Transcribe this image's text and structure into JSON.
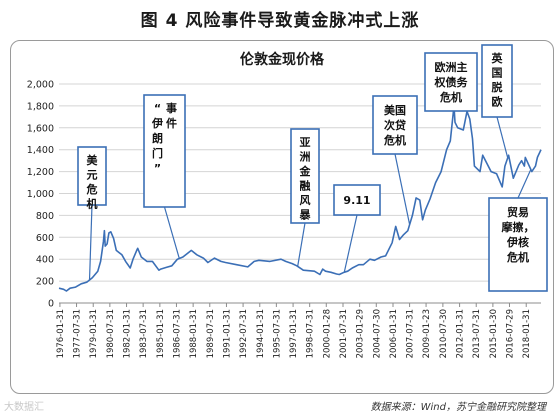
{
  "figure_title": "图 4   风险事件导致黄金脉冲式上涨",
  "source_note": "数据来源：Wind，苏宁金融研究院整理",
  "watermark": "大数据汇",
  "chart_data": {
    "type": "line",
    "title": "伦敦金现价格",
    "ylim": [
      0,
      2000
    ],
    "yticks": [
      0,
      200,
      400,
      600,
      800,
      1000,
      1200,
      1400,
      1600,
      1800,
      2000
    ],
    "ytick_labels": [
      "0",
      "200",
      "400",
      "600",
      "800",
      "1,000",
      "1,200",
      "1,400",
      "1,600",
      "1,800",
      "2,000"
    ],
    "xlim": [
      "1976-01-01",
      "2019-06-01"
    ],
    "xtick_labels": [
      "1976-01-31",
      "1977-07-31",
      "1979-01-31",
      "1980-07-31",
      "1982-01-31",
      "1983-07-31",
      "1985-01-31",
      "1986-07-31",
      "1988-01-31",
      "1989-07-31",
      "1991-01-31",
      "1992-07-31",
      "1994-01-31",
      "1995-07-31",
      "1997-01-31",
      "1998-07-31",
      "2000-01-28",
      "2001-07-31",
      "2003-01-29",
      "2004-07-30",
      "2006-01-31",
      "2007-07-31",
      "2009-01-23",
      "2010-07-30",
      "2012-01-31",
      "2013-07-31",
      "2015-01-30",
      "2016-07-29",
      "2018-01-31"
    ],
    "grid": "horizontal",
    "line_color": "#3b6fb6",
    "series": [
      {
        "x": [
          "1976-01-01",
          "1976-06-01",
          "1976-09-01",
          "1977-01-01",
          "1977-07-01",
          "1978-01-01",
          "1978-07-01",
          "1979-01-01",
          "1979-07-01",
          "1979-10-01",
          "1980-01-01",
          "1980-02-01",
          "1980-03-01",
          "1980-05-01",
          "1980-07-01",
          "1980-09-01",
          "1980-12-01",
          "1981-03-01",
          "1981-06-01",
          "1981-09-01",
          "1982-01-01",
          "1982-06-01",
          "1982-09-01",
          "1983-01-01",
          "1983-02-01",
          "1983-06-01",
          "1983-12-01",
          "1984-06-01",
          "1985-01-01",
          "1985-03-01",
          "1985-09-01",
          "1986-03-01",
          "1986-09-01",
          "1987-03-01",
          "1987-12-01",
          "1988-06-01",
          "1989-01-01",
          "1989-06-01",
          "1990-01-01",
          "1990-08-01",
          "1991-01-01",
          "1992-01-01",
          "1993-01-01",
          "1993-08-01",
          "1994-01-01",
          "1995-01-01",
          "1996-01-01",
          "1996-06-01",
          "1997-01-01",
          "1997-06-01",
          "1998-01-01",
          "1999-01-01",
          "1999-07-01",
          "1999-10-01",
          "2000-01-01",
          "2000-07-01",
          "2001-01-01",
          "2001-04-01",
          "2001-09-01",
          "2002-01-01",
          "2002-06-01",
          "2003-01-01",
          "2003-06-01",
          "2004-01-01",
          "2004-06-01",
          "2005-01-01",
          "2005-06-01",
          "2006-01-01",
          "2006-05-01",
          "2006-09-01",
          "2007-01-01",
          "2007-06-01",
          "2007-11-01",
          "2008-03-01",
          "2008-07-01",
          "2008-10-01",
          "2009-01-01",
          "2009-06-01",
          "2009-12-01",
          "2010-06-01",
          "2010-12-01",
          "2011-04-01",
          "2011-08-01",
          "2011-09-01",
          "2011-12-01",
          "2012-06-01",
          "2012-10-01",
          "2013-01-01",
          "2013-04-01",
          "2013-06-01",
          "2013-12-01",
          "2014-03-01",
          "2014-12-01",
          "2015-06-01",
          "2015-12-01",
          "2016-03-01",
          "2016-07-01",
          "2016-12-01",
          "2017-06-01",
          "2017-09-01",
          "2017-12-01",
          "2018-01-01",
          "2018-08-01",
          "2018-12-01",
          "2019-02-01",
          "2019-06-01"
        ],
        "values": [
          135,
          125,
          110,
          135,
          145,
          175,
          190,
          230,
          290,
          380,
          560,
          660,
          520,
          540,
          640,
          650,
          590,
          480,
          460,
          440,
          380,
          320,
          400,
          480,
          500,
          420,
          380,
          380,
          300,
          310,
          325,
          340,
          400,
          420,
          480,
          440,
          410,
          370,
          410,
          380,
          370,
          350,
          330,
          380,
          390,
          380,
          400,
          380,
          360,
          340,
          300,
          290,
          260,
          310,
          290,
          280,
          265,
          260,
          280,
          290,
          320,
          350,
          350,
          400,
          390,
          420,
          430,
          550,
          700,
          580,
          620,
          660,
          800,
          960,
          940,
          760,
          850,
          950,
          1100,
          1200,
          1400,
          1480,
          1800,
          1650,
          1600,
          1580,
          1750,
          1680,
          1500,
          1250,
          1200,
          1350,
          1200,
          1180,
          1060,
          1250,
          1350,
          1140,
          1260,
          1300,
          1250,
          1330,
          1200,
          1250,
          1330,
          1400
        ]
      }
    ],
    "annotations": [
      {
        "text": "美元危机",
        "date": "1978-10-01"
      },
      {
        "text": "“伊朗门”事件",
        "date": "1986-11-01"
      },
      {
        "text": "亚洲金融风暴",
        "date": "1997-07-01"
      },
      {
        "text": "9.11",
        "date": "2001-09-11"
      },
      {
        "text": "美国次贷危机",
        "date": "2007-08-01"
      },
      {
        "text": "欧洲主权债务危机",
        "date": "2011-08-01"
      },
      {
        "text": "英国脱欧",
        "date": "2016-06-01"
      },
      {
        "text": "贸易摩擦，伊核危机",
        "date": "2018-07-01"
      }
    ]
  }
}
